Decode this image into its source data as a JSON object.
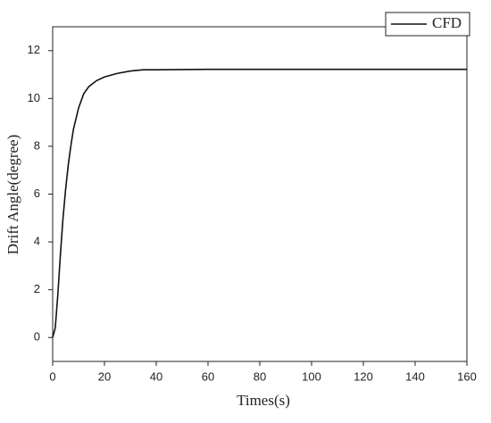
{
  "chart_data": {
    "type": "line",
    "x_label": "Times(s)",
    "y_label": "Drift Angle(degree)",
    "x": [
      0,
      1,
      2,
      3,
      4,
      5,
      6,
      7,
      8,
      10,
      12,
      14,
      17,
      20,
      25,
      30,
      35,
      40,
      60,
      80,
      100,
      120,
      140,
      160
    ],
    "series": [
      {
        "name": "CFD",
        "color": "#111111",
        "values": [
          0,
          0.4,
          1.8,
          3.5,
          5.0,
          6.2,
          7.2,
          8.0,
          8.7,
          9.6,
          10.2,
          10.5,
          10.75,
          10.9,
          11.05,
          11.15,
          11.2,
          11.2,
          11.22,
          11.22,
          11.22,
          11.22,
          11.22,
          11.22
        ]
      }
    ],
    "xlim": [
      0,
      160
    ],
    "xticks": [
      0,
      20,
      40,
      60,
      80,
      100,
      120,
      140,
      160
    ],
    "ylim": [
      -1,
      13
    ],
    "yticks": [
      0,
      2,
      4,
      6,
      8,
      10,
      12
    ],
    "legend": "top-right"
  }
}
